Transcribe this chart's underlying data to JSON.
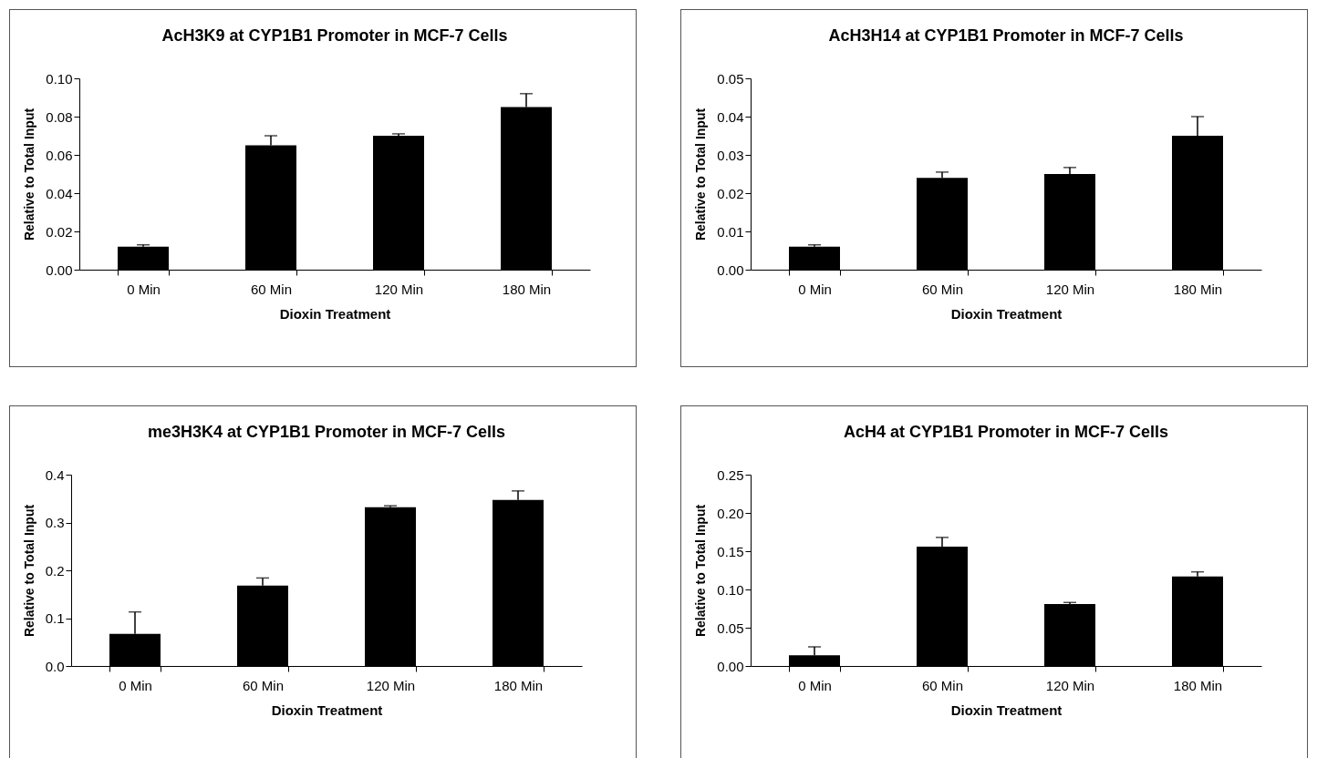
{
  "chart_data": [
    {
      "type": "bar",
      "title": "AcH3K9 at CYP1B1 Promoter in MCF-7 Cells",
      "xlabel": "Dioxin Treatment",
      "ylabel": "Relative to Total  Input",
      "categories": [
        "0 Min",
        "60 Min",
        "120 Min",
        "180 Min"
      ],
      "values": [
        0.012,
        0.065,
        0.07,
        0.085
      ],
      "errors": [
        [
          0.012,
          0.013
        ],
        [
          0.065,
          0.07
        ],
        [
          0.07,
          0.071
        ],
        [
          0.085,
          0.092
        ]
      ],
      "color": "#000000",
      "ylim": [
        0,
        0.1
      ],
      "yticks": [
        {
          "value": 0,
          "label": "0.00"
        },
        {
          "value": 0.02,
          "label": "0.02"
        },
        {
          "value": 0.04,
          "label": "0.04"
        },
        {
          "value": 0.06,
          "label": "0.06"
        },
        {
          "value": 0.08,
          "label": "0.08"
        },
        {
          "value": 0.1,
          "label": "0.10"
        }
      ],
      "grid": false
    },
    {
      "type": "bar",
      "title": "AcH3H14 at CYP1B1 Promoter in MCF-7 Cells",
      "xlabel": "Dioxin Treatment",
      "ylabel": "Relative to Total  Input",
      "categories": [
        "0 Min",
        "60 Min",
        "120 Min",
        "180 Min"
      ],
      "values": [
        0.006,
        0.024,
        0.025,
        0.035
      ],
      "errors": [
        [
          0.006,
          0.0065
        ],
        [
          0.024,
          0.0255
        ],
        [
          0.025,
          0.0267
        ],
        [
          0.035,
          0.04
        ]
      ],
      "color": "#000000",
      "ylim": [
        0,
        0.05
      ],
      "yticks": [
        {
          "value": 0,
          "label": "0.00"
        },
        0.01,
        0.02,
        0.03,
        0.04,
        0.05
      ],
      "grid": false
    },
    {
      "type": "bar",
      "title": "me3H3K4 at CYP1B1 Promoter in MCF-7 Cells",
      "xlabel": "Dioxin Treatment",
      "ylabel": "Relative to Total  Input",
      "categories": [
        "0 Min",
        "60 Min",
        "120 Min",
        "180 Min"
      ],
      "values": [
        0.067,
        0.168,
        0.332,
        0.347
      ],
      "errors": [
        [
          0.067,
          0.113
        ],
        [
          0.168,
          0.184
        ],
        [
          0.332,
          0.335
        ],
        [
          0.347,
          0.366
        ]
      ],
      "color": "#000000",
      "ylim": [
        0,
        0.4
      ],
      "yticks": [
        {
          "value": 0,
          "label": "0.0"
        },
        0.1,
        0.2,
        0.3,
        0.4
      ],
      "grid": false
    },
    {
      "type": "bar",
      "title": "AcH4 at CYP1B1 Promoter in MCF-7 Cells",
      "xlabel": "Dioxin Treatment",
      "ylabel": "Relative to Total Input",
      "categories": [
        "0 Min",
        "60 Min",
        "120 Min",
        "180 Min"
      ],
      "values": [
        0.014,
        0.156,
        0.081,
        0.117
      ],
      "errors": [
        [
          0.014,
          0.025
        ],
        [
          0.156,
          0.168
        ],
        [
          0.081,
          0.083
        ],
        [
          0.117,
          0.123
        ]
      ],
      "color": "#000000",
      "ylim": [
        0,
        0.25
      ],
      "yticks": [
        {
          "value": 0,
          "label": "0.00"
        },
        {
          "value": 0.05,
          "label": "0.05"
        },
        {
          "value": 0.1,
          "label": "0.10"
        },
        0.15,
        {
          "value": 0.2,
          "label": "0.20"
        },
        0.25
      ],
      "grid": false
    }
  ]
}
